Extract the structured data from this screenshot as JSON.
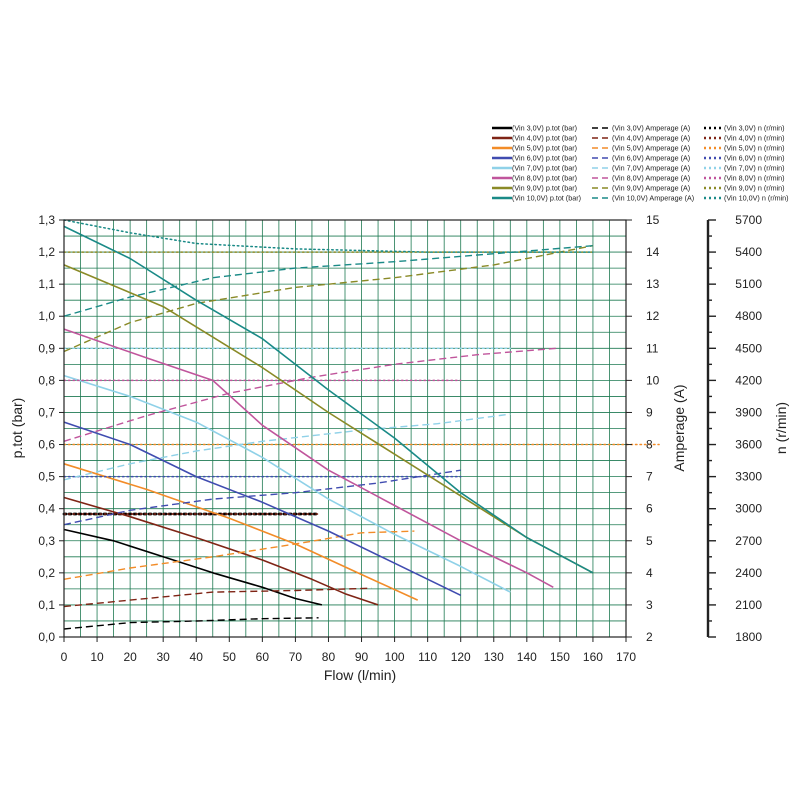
{
  "chart_data": {
    "type": "line",
    "title": "",
    "xlabel": "Flow (l/min)",
    "ylabel_left": "p.tot (bar)",
    "ylabel_right1": "Amperage (A)",
    "ylabel_right2": "n (r/min)",
    "xlim": [
      0,
      170
    ],
    "ylim_left": [
      0,
      1.3
    ],
    "ylim_amp": [
      2,
      15
    ],
    "ylim_rpm": [
      1800,
      5700
    ],
    "x_ticks": [
      "0",
      "10",
      "20",
      "30",
      "40",
      "50",
      "60",
      "70",
      "80",
      "90",
      "100",
      "110",
      "120",
      "130",
      "140",
      "150",
      "160",
      "170"
    ],
    "y_ticks_left": [
      "0,0",
      "0,1",
      "0,2",
      "0,3",
      "0,4",
      "0,5",
      "0,6",
      "0,7",
      "0,8",
      "0,9",
      "1,0",
      "1,1",
      "1,2",
      "1,3"
    ],
    "y_ticks_amp": [
      "2",
      "3",
      "4",
      "5",
      "6",
      "7",
      "8",
      "9",
      "10",
      "11",
      "12",
      "13",
      "14",
      "15"
    ],
    "y_ticks_rpm": [
      "1800",
      "2100",
      "2400",
      "2700",
      "3000",
      "3300",
      "3600",
      "3900",
      "4200",
      "4500",
      "4800",
      "5100",
      "5400",
      "5700"
    ],
    "grid": true,
    "legend_position": "top-right",
    "series": [
      {
        "voltage": "3,0V",
        "color": "#000000",
        "p_label": "(Vin 3,0V) p.tot (bar)",
        "a_label": "(Vin 3,0V) Amperage (A)",
        "n_label": "(Vin 3,0V) n (r/min)",
        "pressure": [
          [
            0,
            0.335
          ],
          [
            15,
            0.3
          ],
          [
            30,
            0.25
          ],
          [
            45,
            0.2
          ],
          [
            60,
            0.155
          ],
          [
            70,
            0.12
          ],
          [
            78,
            0.1
          ]
        ],
        "amperage": [
          [
            0,
            2.25
          ],
          [
            20,
            2.45
          ],
          [
            40,
            2.5
          ],
          [
            60,
            2.57
          ],
          [
            77,
            2.6
          ]
        ],
        "rpm": [
          [
            0,
            2950
          ],
          [
            77,
            2950
          ]
        ]
      },
      {
        "voltage": "4,0V",
        "color": "#7f2415",
        "p_label": "(Vin 4,0V) p.tot (bar)",
        "a_label": "(Vin 4,0V) Amperage (A)",
        "n_label": "(Vin 4,0V) n (r/min)",
        "pressure": [
          [
            0,
            0.435
          ],
          [
            20,
            0.375
          ],
          [
            40,
            0.31
          ],
          [
            60,
            0.24
          ],
          [
            75,
            0.18
          ],
          [
            85,
            0.135
          ],
          [
            95,
            0.1
          ]
        ],
        "amperage": [
          [
            0,
            2.95
          ],
          [
            20,
            3.15
          ],
          [
            45,
            3.4
          ],
          [
            70,
            3.45
          ],
          [
            93,
            3.52
          ]
        ],
        "rpm": [
          [
            0,
            2950
          ],
          [
            77,
            2950
          ]
        ]
      },
      {
        "voltage": "5,0V",
        "color": "#f28c28",
        "p_label": "(Vin 5,0V) p.tot (bar)",
        "a_label": "(Vin 5,0V) Amperage (A)",
        "n_label": "(Vin 5,0V) n (r/min)",
        "pressure": [
          [
            0,
            0.54
          ],
          [
            25,
            0.46
          ],
          [
            50,
            0.37
          ],
          [
            70,
            0.29
          ],
          [
            90,
            0.195
          ],
          [
            107,
            0.115
          ]
        ],
        "amperage": [
          [
            0,
            3.8
          ],
          [
            20,
            4.15
          ],
          [
            45,
            4.5
          ],
          [
            70,
            4.9
          ],
          [
            90,
            5.25
          ],
          [
            106,
            5.3
          ]
        ],
        "rpm": [
          [
            0,
            3600
          ],
          [
            180,
            3600
          ]
        ]
      },
      {
        "voltage": "6,0V",
        "color": "#404cb0",
        "p_label": "(Vin 6,0V) p.tot (bar)",
        "a_label": "(Vin 6,0V) Amperage (A)",
        "n_label": "(Vin 6,0V) n (r/min)",
        "pressure": [
          [
            0,
            0.67
          ],
          [
            20,
            0.6
          ],
          [
            40,
            0.5
          ],
          [
            60,
            0.42
          ],
          [
            80,
            0.33
          ],
          [
            100,
            0.23
          ],
          [
            120,
            0.13
          ]
        ],
        "amperage": [
          [
            0,
            5.5
          ],
          [
            20,
            5.95
          ],
          [
            45,
            6.3
          ],
          [
            70,
            6.5
          ],
          [
            95,
            6.8
          ],
          [
            120,
            7.2
          ]
        ],
        "rpm": [
          [
            0,
            3300
          ],
          [
            120,
            3300
          ]
        ]
      },
      {
        "voltage": "7,0V",
        "color": "#8fd1e8",
        "p_label": "(Vin 7,0V) p.tot (bar)",
        "a_label": "(Vin 7,0V) Amperage (A)",
        "n_label": "(Vin 7,0V) n (r/min)",
        "pressure": [
          [
            0,
            0.815
          ],
          [
            20,
            0.75
          ],
          [
            40,
            0.67
          ],
          [
            60,
            0.56
          ],
          [
            80,
            0.43
          ],
          [
            100,
            0.32
          ],
          [
            120,
            0.22
          ],
          [
            135,
            0.14
          ]
        ],
        "amperage": [
          [
            0,
            6.9
          ],
          [
            20,
            7.4
          ],
          [
            40,
            7.8
          ],
          [
            60,
            8.1
          ],
          [
            90,
            8.45
          ],
          [
            113,
            8.65
          ],
          [
            135,
            8.95
          ]
        ],
        "rpm": [
          [
            0,
            4500
          ],
          [
            135,
            4500
          ]
        ]
      },
      {
        "voltage": "8,0V",
        "color": "#c0559c",
        "p_label": "(Vin 8,0V) p.tot (bar)",
        "a_label": "(Vin 8,0V) Amperage (A)",
        "n_label": "(Vin 8,0V) n (r/min)",
        "pressure": [
          [
            0,
            0.96
          ],
          [
            25,
            0.87
          ],
          [
            45,
            0.8
          ],
          [
            60,
            0.66
          ],
          [
            80,
            0.52
          ],
          [
            100,
            0.41
          ],
          [
            120,
            0.3
          ],
          [
            140,
            0.2
          ],
          [
            148,
            0.155
          ]
        ],
        "amperage": [
          [
            0,
            8.1
          ],
          [
            25,
            8.9
          ],
          [
            50,
            9.6
          ],
          [
            75,
            10.1
          ],
          [
            100,
            10.5
          ],
          [
            125,
            10.8
          ],
          [
            149,
            11.0
          ]
        ],
        "rpm": [
          [
            0,
            4200
          ],
          [
            120,
            4200
          ]
        ]
      },
      {
        "voltage": "9,0V",
        "color": "#8a8a27",
        "p_label": "(Vin 9,0V) p.tot (bar)",
        "a_label": "(Vin 9,0V) Amperage (A)",
        "n_label": "(Vin 9,0V) n (r/min)",
        "pressure": [
          [
            0,
            1.16
          ],
          [
            30,
            1.03
          ],
          [
            60,
            0.84
          ],
          [
            80,
            0.7
          ],
          [
            100,
            0.57
          ],
          [
            120,
            0.44
          ],
          [
            140,
            0.31
          ],
          [
            160,
            0.2
          ]
        ],
        "amperage": [
          [
            0,
            10.9
          ],
          [
            20,
            11.8
          ],
          [
            40,
            12.4
          ],
          [
            70,
            12.9
          ],
          [
            100,
            13.2
          ],
          [
            130,
            13.6
          ],
          [
            150,
            14.0
          ],
          [
            160,
            14.2
          ]
        ],
        "rpm": [
          [
            0,
            5400
          ],
          [
            160,
            5400
          ]
        ]
      },
      {
        "voltage": "10,0V",
        "color": "#1a8a87",
        "p_label": "(Vin 10,0V) p.tot (bar)",
        "a_label": "(Vin 10,0V) Amperage (A)",
        "n_label": "(Vin 10,0V) n (r/min)",
        "pressure": [
          [
            0,
            1.28
          ],
          [
            20,
            1.18
          ],
          [
            40,
            1.05
          ],
          [
            60,
            0.93
          ],
          [
            80,
            0.77
          ],
          [
            100,
            0.62
          ],
          [
            120,
            0.45
          ],
          [
            140,
            0.31
          ],
          [
            160,
            0.2
          ]
        ],
        "amperage": [
          [
            0,
            12.0
          ],
          [
            20,
            12.6
          ],
          [
            45,
            13.2
          ],
          [
            70,
            13.5
          ],
          [
            100,
            13.7
          ],
          [
            130,
            13.95
          ],
          [
            160,
            14.2
          ]
        ],
        "rpm": [
          [
            0,
            5700
          ],
          [
            20,
            5580
          ],
          [
            40,
            5480
          ],
          [
            70,
            5430
          ],
          [
            110,
            5400
          ],
          [
            160,
            5400
          ]
        ]
      }
    ]
  }
}
